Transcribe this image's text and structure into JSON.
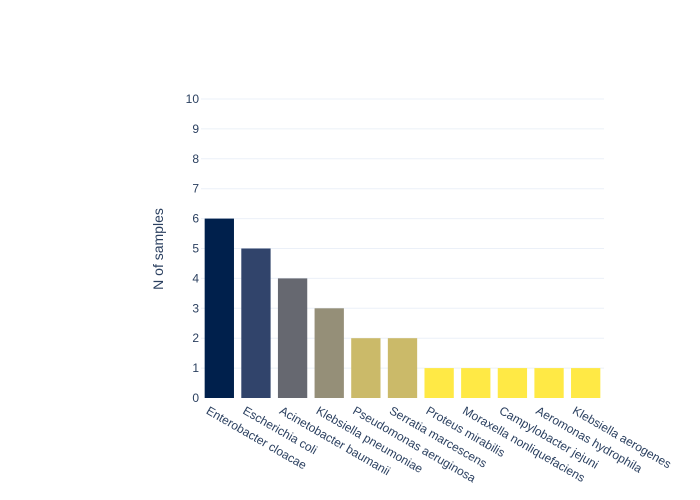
{
  "chart_data": {
    "type": "bar",
    "categories": [
      "Enterobacter  cloacae",
      "Escherichia coli",
      "Acinetobacter baumanii",
      "Klebsiella pneumoniae",
      "Pseudomonas aeruginosa",
      "Serratia marcescens",
      "Proteus mirabilis",
      "Moraxella nonliquefaciens",
      "Campylobacter jejuni",
      "Aeromonas hydrophila",
      "Klebsiella aerogenes"
    ],
    "values": [
      6,
      5,
      4,
      3,
      2,
      2,
      1,
      1,
      1,
      1,
      1
    ],
    "colors": [
      "#00204c",
      "#31446b",
      "#666870",
      "#958f78",
      "#cbba69",
      "#cbba69",
      "#ffe945",
      "#ffe945",
      "#ffe945",
      "#ffe945",
      "#ffe945"
    ],
    "title": "",
    "xlabel": "",
    "ylabel": "N of samples",
    "ylim": [
      0,
      10
    ],
    "yticks": [
      0,
      1,
      2,
      3,
      4,
      5,
      6,
      7,
      8,
      9,
      10
    ],
    "grid": true,
    "legend": "none"
  }
}
